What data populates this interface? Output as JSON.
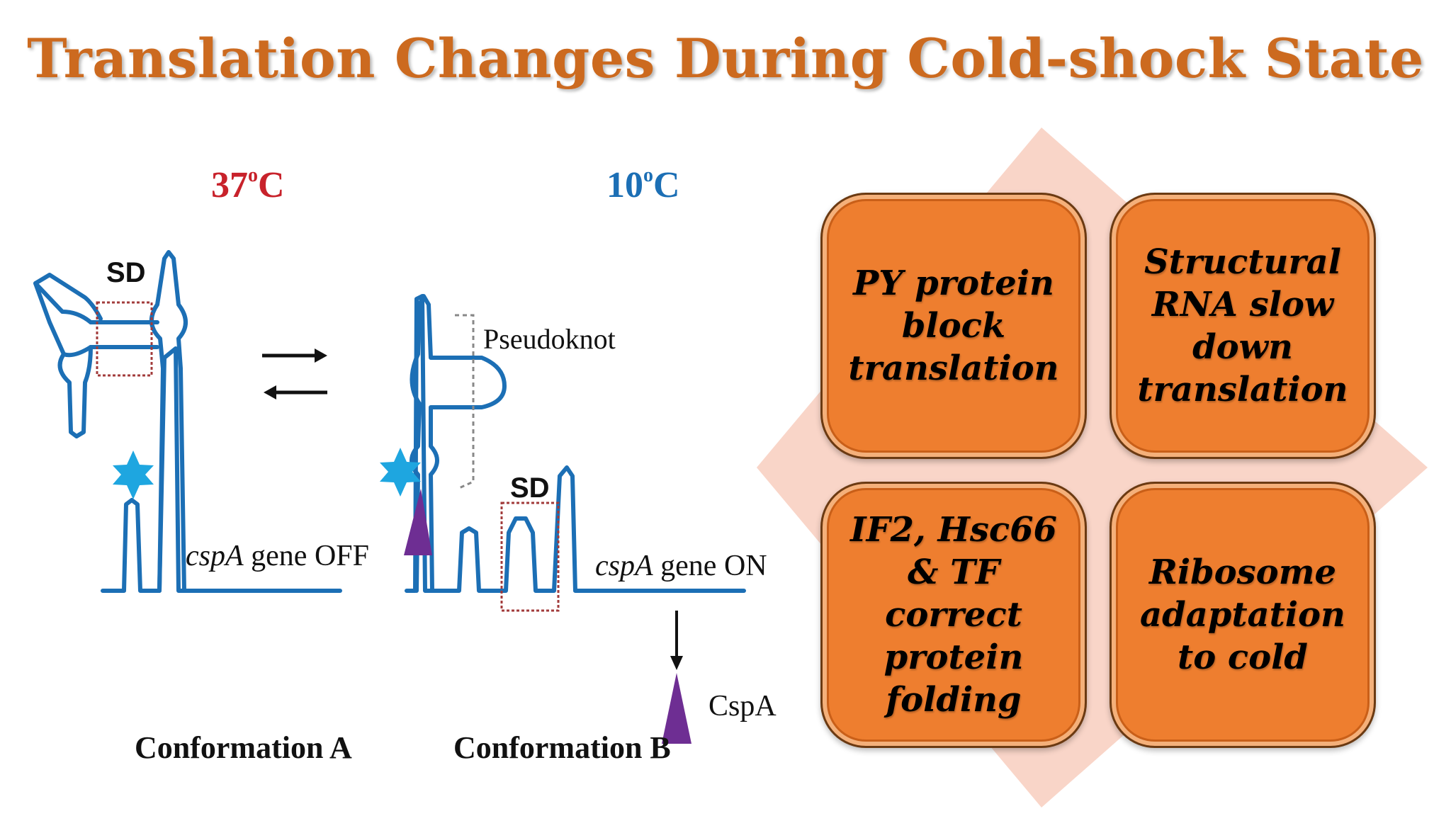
{
  "title": "Translation Changes During Cold-shock State",
  "diagram": {
    "temp_a": "37",
    "temp_a_sup": "o",
    "temp_a_unit": "C",
    "temp_b": "10",
    "temp_b_sup": "o",
    "temp_b_unit": "C",
    "sd_a": "SD",
    "sd_b": "SD",
    "pseudoknot": "Pseudoknot",
    "gene_a_italic": "cspA",
    "gene_a_rest": " gene OFF",
    "gene_b_italic": "cspA",
    "gene_b_rest": " gene ON",
    "cspa": "CspA",
    "conformation_a": "Conformation A",
    "conformation_b": "Conformation B"
  },
  "panels": [
    {
      "text": "PY protein block translation"
    },
    {
      "text": "Structural RNA slow down translation"
    },
    {
      "text": "IF2, Hsc66 & TF correct protein folding"
    },
    {
      "text": "Ribosome adaptation to cold"
    }
  ],
  "colors": {
    "title": "#CC6A1F",
    "rna": "#1C6FB5",
    "temp_warm": "#C8222B",
    "temp_cold": "#1C6FB5",
    "star": "#1EA6E0",
    "cspa_protein": "#6E2E93",
    "sd_box": "#A23B3B",
    "panel_fill": "#EE7E2F",
    "diamond": "#F9D5C8"
  }
}
